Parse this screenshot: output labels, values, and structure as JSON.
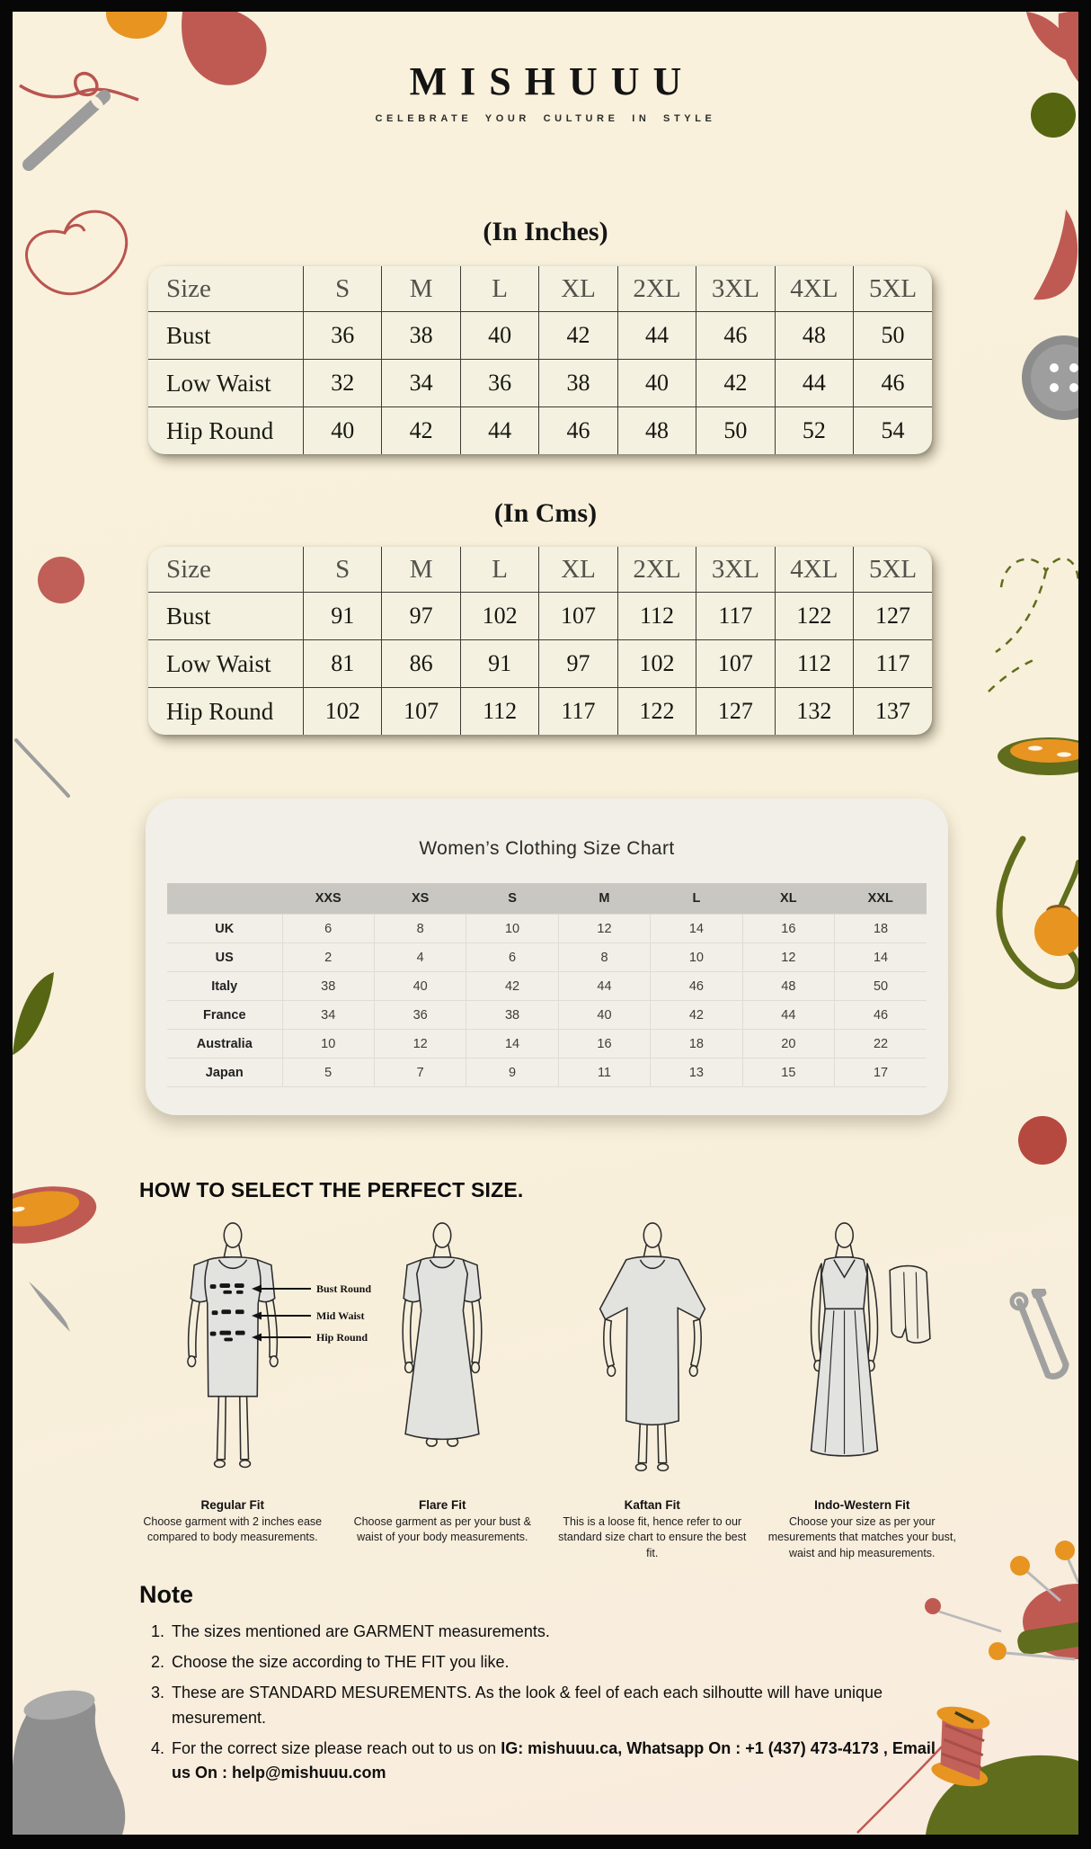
{
  "brand": {
    "name": "MISHUUU",
    "tagline": "CELEBRATE YOUR CULTURE IN STYLE"
  },
  "inches_table": {
    "title": "(In Inches)",
    "header": [
      "Size",
      "S",
      "M",
      "L",
      "XL",
      "2XL",
      "3XL",
      "4XL",
      "5XL"
    ],
    "rows": [
      {
        "label": "Bust",
        "values": [
          36,
          38,
          40,
          42,
          44,
          46,
          48,
          50
        ]
      },
      {
        "label": "Low Waist",
        "values": [
          32,
          34,
          36,
          38,
          40,
          42,
          44,
          46
        ]
      },
      {
        "label": "Hip Round",
        "values": [
          40,
          42,
          44,
          46,
          48,
          50,
          52,
          54
        ]
      }
    ]
  },
  "cms_table": {
    "title": "(In Cms)",
    "header": [
      "Size",
      "S",
      "M",
      "L",
      "XL",
      "2XL",
      "3XL",
      "4XL",
      "5XL"
    ],
    "rows": [
      {
        "label": "Bust",
        "values": [
          91,
          97,
          102,
          107,
          112,
          117,
          122,
          127
        ]
      },
      {
        "label": "Low Waist",
        "values": [
          81,
          86,
          91,
          97,
          102,
          107,
          112,
          117
        ]
      },
      {
        "label": "Hip Round",
        "values": [
          102,
          107,
          112,
          117,
          122,
          127,
          132,
          137
        ]
      }
    ]
  },
  "women_chart": {
    "title": "Women’s Clothing Size Chart",
    "header": [
      "",
      "XXS",
      "XS",
      "S",
      "M",
      "L",
      "XL",
      "XXL"
    ],
    "rows": [
      {
        "label": "UK",
        "values": [
          6,
          8,
          10,
          12,
          14,
          16,
          18
        ]
      },
      {
        "label": "US",
        "values": [
          2,
          4,
          6,
          8,
          10,
          12,
          14
        ]
      },
      {
        "label": "Italy",
        "values": [
          38,
          40,
          42,
          44,
          46,
          48,
          50
        ]
      },
      {
        "label": "France",
        "values": [
          34,
          36,
          38,
          40,
          42,
          44,
          46
        ]
      },
      {
        "label": "Australia",
        "values": [
          10,
          12,
          14,
          16,
          18,
          20,
          22
        ]
      },
      {
        "label": "Japan",
        "values": [
          5,
          7,
          9,
          11,
          13,
          15,
          17
        ]
      }
    ]
  },
  "fit_section": {
    "heading": "HOW TO SELECT THE PERFECT SIZE.",
    "annotations": [
      "Bust Round",
      "Mid Waist",
      "Hip Round"
    ],
    "fits": [
      {
        "name": "Regular Fit",
        "description": "Choose garment with 2 inches ease compared to body measurements."
      },
      {
        "name": "Flare Fit",
        "description": "Choose garment as per your bust & waist of your body measurements."
      },
      {
        "name": "Kaftan Fit",
        "description": "This is a loose fit, hence refer to our standard size chart to ensure the best fit."
      },
      {
        "name": "Indo-Western Fit",
        "description": "Choose your size as per your mesurements that matches your bust, waist and hip measurements."
      }
    ]
  },
  "note": {
    "heading": "Note",
    "items": [
      "The sizes mentioned are GARMENT measurements.",
      "Choose the size according to THE FIT you like.",
      "These are STANDARD MESUREMENTS. As the look & feel of each each silhoutte will have unique mesurement.",
      {
        "text": "For the correct size please reach out to us on ",
        "bold": "IG: mishuuu.ca, Whatsapp On : +1 (437) 473-4173 , Email us On : help@mishuuu.com"
      }
    ]
  },
  "colors": {
    "frame_black": "#070707",
    "background_cream": "#f8f0da",
    "card_cream": "#f4f1e1",
    "women_card": "#f1efe8",
    "header_grey": "#c8c7c2",
    "accent_red": "#bf5a53",
    "accent_orange": "#e79421",
    "accent_olive": "#5f6d1c",
    "accent_grey": "#9c9c9c",
    "text_dark": "#141414"
  }
}
